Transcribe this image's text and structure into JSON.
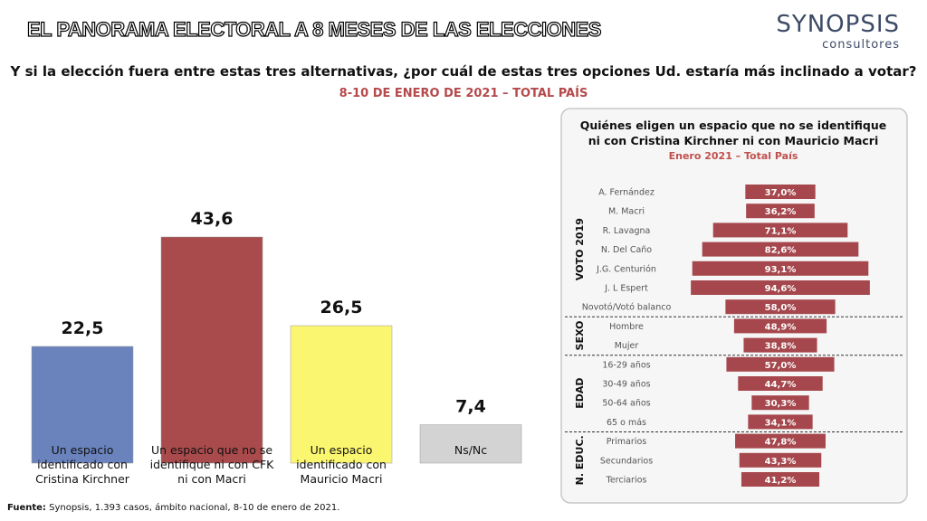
{
  "header": {
    "title": "EL PANORAMA ELECTORAL A 8 MESES DE LAS ELECCIONES",
    "logo": "SYNOPSIS",
    "logo_sub": "consultores"
  },
  "footer": {
    "label": "Fuente:",
    "text": "Synopsis, 1.393 casos, ámbito nacional, 8-10 de enero de 2021."
  },
  "chart_data": [
    {
      "type": "bar",
      "title": "Y si la elección fuera entre estas tres alternativas, ¿por cuál de estas tres opciones Ud. estaría más inclinado a votar?",
      "subtitle": "8-10 DE ENERO DE 2021 – TOTAL PAÍS",
      "categories": [
        "Un espacio\nidentificado con\nCristina Kirchner",
        "Un espacio que no se\nidentifique ni con CFK\nni con Macri",
        "Un espacio\nidentificado con\nMauricio Macri",
        "Ns/Nc"
      ],
      "values": [
        22.5,
        43.6,
        26.5,
        7.4
      ],
      "value_labels": [
        "22,5",
        "43,6",
        "26,5",
        "7,4"
      ],
      "colors": [
        "#6a83bd",
        "#a94a4c",
        "#fbf66f",
        "#d3d3d3"
      ]
    },
    {
      "type": "centered-bar",
      "title": "Quiénes eligen un espacio que no se identifique ni con Cristina Kirchner ni con Mauricio Macri",
      "subtitle": "Enero 2021 – Total País",
      "color": "#a5474c",
      "groups": [
        {
          "name": "VOTO 2019",
          "categories": [
            "A. Fernández",
            "M. Macri",
            "R. Lavagna",
            "N. Del Caño",
            "J.G. Centurión",
            "J. L Espert",
            "Novotó/Votó balanco"
          ],
          "values": [
            37.0,
            36.2,
            71.1,
            82.6,
            93.1,
            94.6,
            58.0
          ],
          "value_labels": [
            "37,0%",
            "36,2%",
            "71,1%",
            "82,6%",
            "93,1%",
            "94,6%",
            "58,0%"
          ]
        },
        {
          "name": "SEXO",
          "categories": [
            "Hombre",
            "Mujer"
          ],
          "values": [
            48.9,
            38.8
          ],
          "value_labels": [
            "48,9%",
            "38,8%"
          ]
        },
        {
          "name": "EDAD",
          "categories": [
            "16-29 años",
            "30-49 años",
            "50-64 años",
            "65 o más"
          ],
          "values": [
            57.0,
            44.7,
            30.3,
            34.1
          ],
          "value_labels": [
            "57,0%",
            "44,7%",
            "30,3%",
            "34,1%"
          ]
        },
        {
          "name": "N. EDUC.",
          "categories": [
            "Primarios",
            "Secundarios",
            "Terciarios"
          ],
          "values": [
            47.8,
            43.3,
            41.2
          ],
          "value_labels": [
            "47,8%",
            "43,3%",
            "41,2%"
          ]
        }
      ]
    }
  ]
}
